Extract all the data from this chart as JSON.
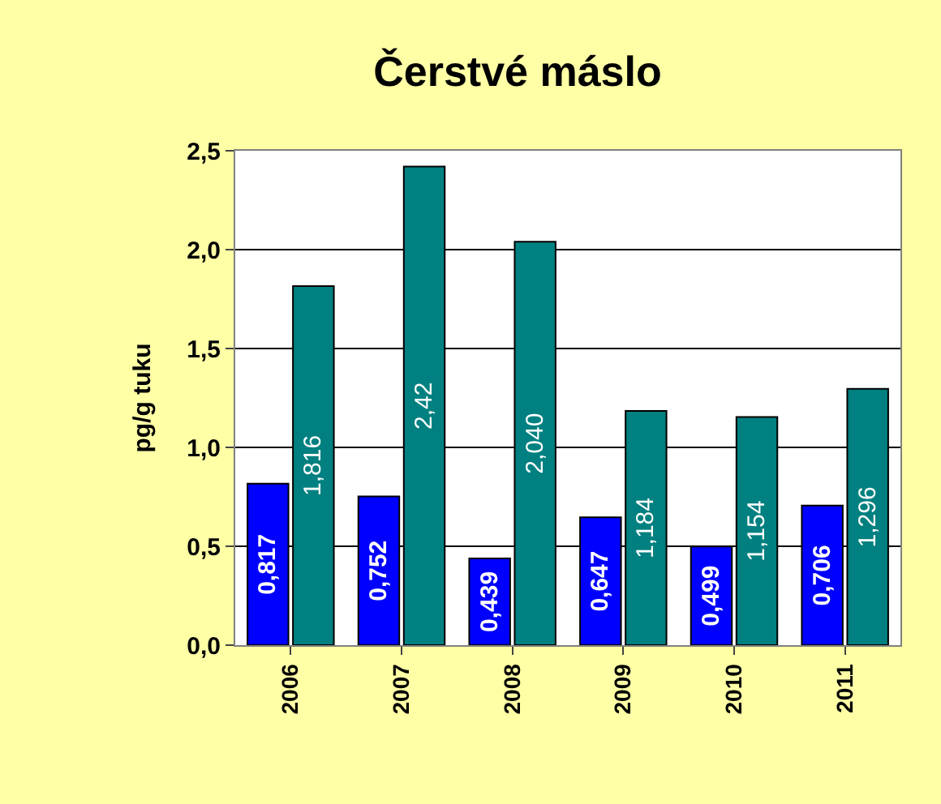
{
  "chart_data": {
    "type": "bar",
    "title": "Čerstvé máslo",
    "ylabel": "pg/g tuku",
    "categories": [
      "2006",
      "2007",
      "2008",
      "2009",
      "2010",
      "2011"
    ],
    "series": [
      {
        "color": "#0000ff",
        "values": [
          0.817,
          0.752,
          0.439,
          0.647,
          0.499,
          0.706
        ],
        "value_labels": [
          "0,817",
          "0,752",
          "0,439",
          "0,647",
          "0,499",
          "0,706"
        ]
      },
      {
        "color": "#008080",
        "values": [
          1.816,
          2.42,
          2.04,
          1.184,
          1.154,
          1.296
        ],
        "value_labels": [
          "1,816",
          "2,42",
          "2,040",
          "1,184",
          "1,154",
          "1,296"
        ]
      }
    ],
    "ylim": [
      0,
      2.5
    ],
    "yticks": [
      {
        "value": 0,
        "label": "0,0"
      },
      {
        "value": 0.5,
        "label": "0,5"
      },
      {
        "value": 1,
        "label": "1,0"
      },
      {
        "value": 1.5,
        "label": "1,5"
      },
      {
        "value": 2,
        "label": "2,0"
      },
      {
        "value": 2.5,
        "label": "2,5"
      }
    ],
    "grid": "y",
    "legend": false
  }
}
